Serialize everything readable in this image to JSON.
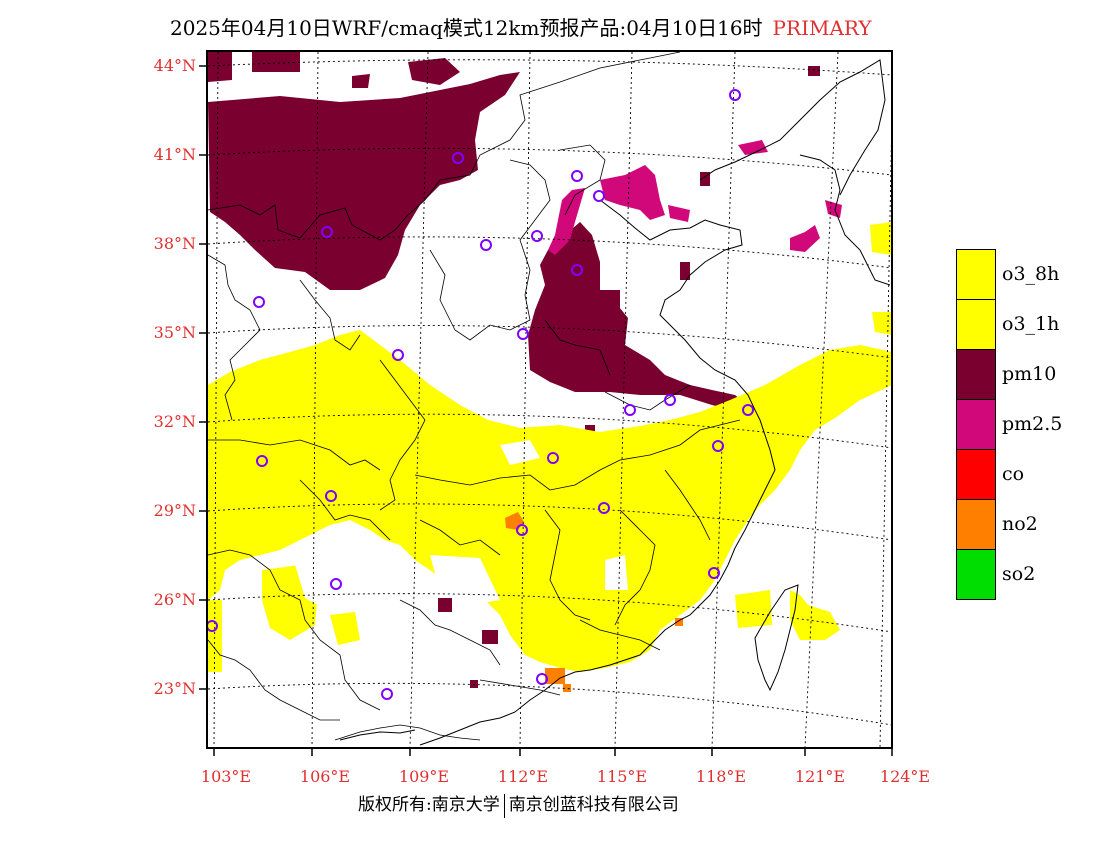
{
  "title": {
    "main": "2025年04月10日WRF/cmaq模式12km预报产品:04月10日16时",
    "tag": "PRIMARY"
  },
  "lat_labels": [
    "44°N",
    "41°N",
    "38°N",
    "35°N",
    "32°N",
    "29°N",
    "26°N",
    "23°N"
  ],
  "lon_labels": [
    "103°E",
    "106°E",
    "109°E",
    "112°E",
    "115°E",
    "118°E",
    "121°E",
    "124°E"
  ],
  "footer": {
    "left": "版权所有:南京大学",
    "right": "南京创蓝科技有限公司"
  },
  "legend": [
    {
      "label": "o3_8h",
      "color": "#ffff00"
    },
    {
      "label": "o3_1h",
      "color": "#ffff00"
    },
    {
      "label": "pm10",
      "color": "#7a0030"
    },
    {
      "label": "pm2.5",
      "color": "#d0087a"
    },
    {
      "label": "co",
      "color": "#ff0000"
    },
    {
      "label": "no2",
      "color": "#ff7f00"
    },
    {
      "label": "so2",
      "color": "#00dd00"
    }
  ],
  "colors": {
    "o3": "#ffff00",
    "pm10": "#7a0030",
    "pm25": "#d0087a",
    "no2": "#ff7f00",
    "station": "#8000ff",
    "axis_label": "#e03030",
    "boundary": "#000000"
  }
}
